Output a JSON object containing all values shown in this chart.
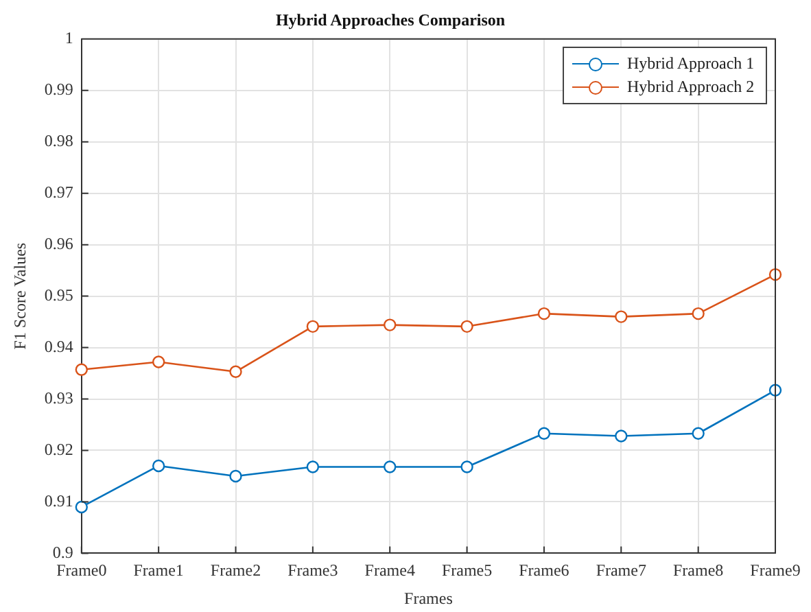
{
  "chart_data": {
    "type": "line",
    "title": "Hybrid Approaches Comparison",
    "xlabel": "Frames",
    "ylabel": "F1 Score Values",
    "categories": [
      "Frame0",
      "Frame1",
      "Frame2",
      "Frame3",
      "Frame4",
      "Frame5",
      "Frame6",
      "Frame7",
      "Frame8",
      "Frame9"
    ],
    "series": [
      {
        "name": "Hybrid Approach 1",
        "color": "#0072bd",
        "values": [
          0.909,
          0.917,
          0.915,
          0.9168,
          0.9168,
          0.9168,
          0.9233,
          0.9228,
          0.9233,
          0.9317
        ]
      },
      {
        "name": "Hybrid Approach 2",
        "color": "#d95319",
        "values": [
          0.9357,
          0.9372,
          0.9353,
          0.9441,
          0.9444,
          0.9441,
          0.9466,
          0.946,
          0.9466,
          0.9542
        ]
      }
    ],
    "ylim": [
      0.9,
      1
    ],
    "yticks": [
      0.9,
      0.91,
      0.92,
      0.93,
      0.94,
      0.95,
      0.96,
      0.97,
      0.98,
      0.99,
      1
    ],
    "grid": true,
    "legend": "top right",
    "marker": "circle",
    "line_style": "solid"
  }
}
